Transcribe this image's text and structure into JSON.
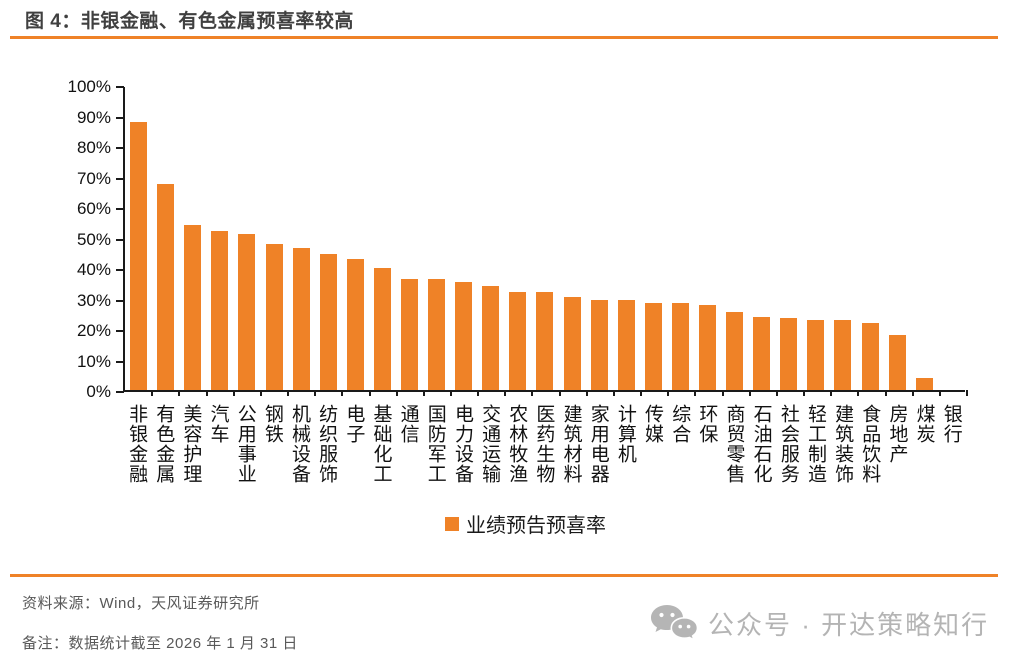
{
  "title": "图 4：非银金融、有色金属预喜率较高",
  "accent_color": "#EF8227",
  "chart_data": {
    "type": "bar",
    "title": "图 4：非银金融、有色金属预喜率较高",
    "legend_label": "业绩预告预喜率",
    "legend_position": "bottom",
    "bar_color": "#EF8227",
    "grid": false,
    "unit": "%",
    "ylim": [
      0,
      100
    ],
    "ytick_labels": [
      "0%",
      "10%",
      "20%",
      "30%",
      "40%",
      "50%",
      "60%",
      "70%",
      "80%",
      "90%",
      "100%"
    ],
    "categories": [
      "非银金融",
      "有色金属",
      "美容护理",
      "汽车",
      "公用事业",
      "钢铁",
      "机械设备",
      "纺织服饰",
      "电子",
      "基础化工",
      "通信",
      "国防军工",
      "电力设备",
      "交通运输",
      "农林牧渔",
      "医药生物",
      "建筑材料",
      "家用电器",
      "计算机",
      "传媒",
      "综合",
      "环保",
      "商贸零售",
      "石油石化",
      "社会服务",
      "轻工制造",
      "建筑装饰",
      "食品饮料",
      "房地产",
      "煤炭",
      "银行"
    ],
    "values": [
      88,
      67.5,
      54,
      52,
      51,
      48,
      46.5,
      44.5,
      43,
      40,
      36.5,
      36.5,
      35.5,
      34,
      32,
      32,
      30.5,
      29.5,
      29.5,
      28.5,
      28.5,
      28,
      25.5,
      24,
      23.5,
      23,
      23,
      22,
      18,
      4,
      0
    ]
  },
  "footer": {
    "source": "资料来源：Wind，天风证券研究所",
    "note": "备注：数据统计截至 2026 年 1 月 31 日",
    "watermark": "公众号 · 开达策略知行"
  }
}
